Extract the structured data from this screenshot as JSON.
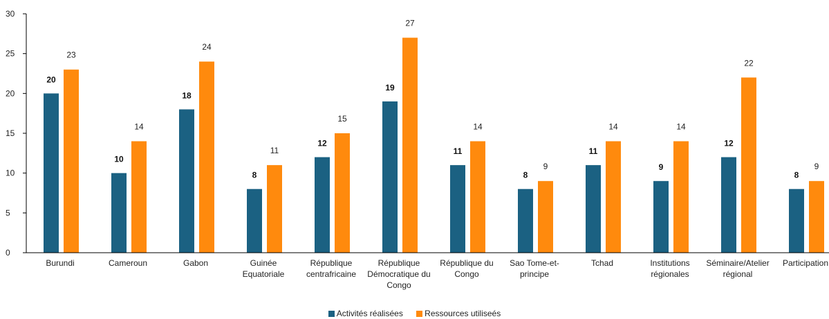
{
  "chart_data": {
    "type": "bar",
    "categories": [
      [
        "Burundi"
      ],
      [
        "Cameroun"
      ],
      [
        "Gabon"
      ],
      [
        "Guinée",
        "Equatoriale"
      ],
      [
        "République",
        "centrafricaine"
      ],
      [
        "République",
        "Démocratique du",
        "Congo"
      ],
      [
        "République du",
        "Congo"
      ],
      [
        "Sao Tome-et-",
        "principe"
      ],
      [
        "Tchad"
      ],
      [
        "Institutions",
        "régionales"
      ],
      [
        "Séminaire/Atelier",
        "régional"
      ],
      [
        "Participation"
      ]
    ],
    "series": [
      {
        "name": "Activités réalisées",
        "color": "#1b6182",
        "values": [
          20,
          10,
          18,
          8,
          12,
          19,
          11,
          8,
          11,
          9,
          12,
          8
        ]
      },
      {
        "name": "Ressources utiliseés",
        "color": "#ff8a0d",
        "values": [
          23,
          14,
          24,
          11,
          15,
          27,
          14,
          9,
          14,
          14,
          22,
          9
        ]
      }
    ],
    "ylim": [
      0,
      30
    ],
    "yticks": [
      0,
      5,
      10,
      15,
      20,
      25,
      30
    ],
    "title": "",
    "xlabel": "",
    "ylabel": "",
    "grid": false,
    "legend_position": "bottom"
  }
}
